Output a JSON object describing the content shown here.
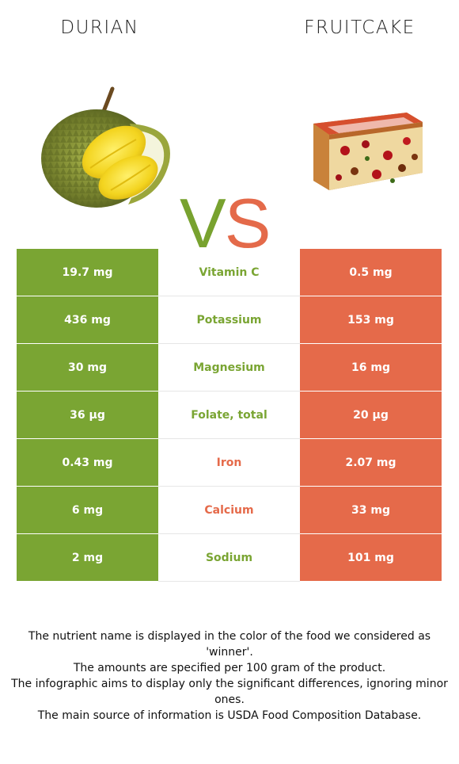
{
  "left_food": {
    "title": "DURIAN",
    "color": "#7aa533"
  },
  "right_food": {
    "title": "FRUITCAKE",
    "color": "#e56a4a"
  },
  "vs": {
    "v": "V",
    "s": "S"
  },
  "rows": [
    {
      "left": "19.7 mg",
      "nutrient": "Vitamin C",
      "right": "0.5 mg",
      "winner": "left"
    },
    {
      "left": "436 mg",
      "nutrient": "Potassium",
      "right": "153 mg",
      "winner": "left"
    },
    {
      "left": "30 mg",
      "nutrient": "Magnesium",
      "right": "16 mg",
      "winner": "left"
    },
    {
      "left": "36 µg",
      "nutrient": "Folate, total",
      "right": "20 µg",
      "winner": "left"
    },
    {
      "left": "0.43 mg",
      "nutrient": "Iron",
      "right": "2.07 mg",
      "winner": "right"
    },
    {
      "left": "6 mg",
      "nutrient": "Calcium",
      "right": "33 mg",
      "winner": "right"
    },
    {
      "left": "2 mg",
      "nutrient": "Sodium",
      "right": "101 mg",
      "winner": "left"
    }
  ],
  "footer": {
    "line1": "The nutrient name is displayed in the color of the food we considered as 'winner'.",
    "line2": "The amounts are specified per 100 gram of the product.",
    "line3": "The infographic aims to display only the significant differences, ignoring minor ones.",
    "line4": "The main source of information is USDA Food Composition Database."
  }
}
